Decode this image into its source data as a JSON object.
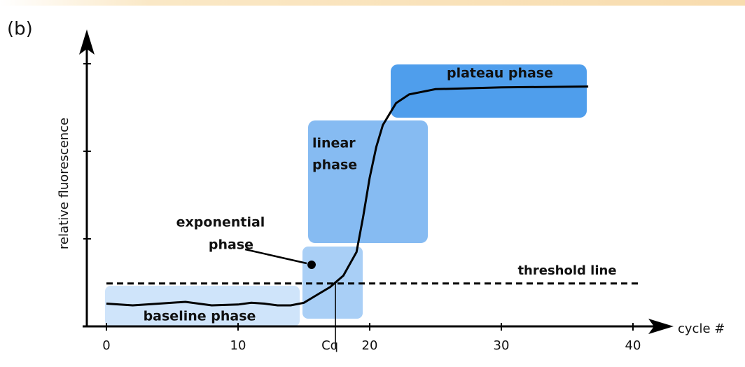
{
  "chart_data": {
    "type": "line",
    "panel_label": "(b)",
    "x_label": "cycle #",
    "y_label": "relative fluorescence",
    "xlim": [
      0,
      40
    ],
    "xticks": [
      0,
      10,
      20,
      30,
      40
    ],
    "ylim": [
      0,
      3.4
    ],
    "yticks": [
      0,
      1,
      2,
      3
    ],
    "series": [
      {
        "color": "#000000",
        "x": [
          0,
          2,
          4,
          6,
          8,
          10,
          11,
          12,
          13,
          14,
          15,
          16,
          17,
          18,
          19,
          19.5,
          20,
          20.5,
          21,
          22,
          23,
          25,
          30,
          36.6
        ],
        "values": [
          0.26,
          0.24,
          0.26,
          0.28,
          0.24,
          0.25,
          0.27,
          0.26,
          0.24,
          0.24,
          0.27,
          0.36,
          0.45,
          0.58,
          0.85,
          1.25,
          1.7,
          2.05,
          2.3,
          2.55,
          2.65,
          2.71,
          2.73,
          2.74
        ]
      }
    ],
    "threshold": {
      "label": "threshold line",
      "value": 0.49
    },
    "cq": {
      "label": "Cq",
      "value": 17.4
    },
    "phases": [
      {
        "lines": [
          "baseline phase"
        ]
      },
      {
        "lines": [
          "exponential",
          "phase"
        ]
      },
      {
        "lines": [
          "linear",
          "phase"
        ]
      },
      {
        "lines": [
          "plateau phase"
        ]
      }
    ]
  }
}
